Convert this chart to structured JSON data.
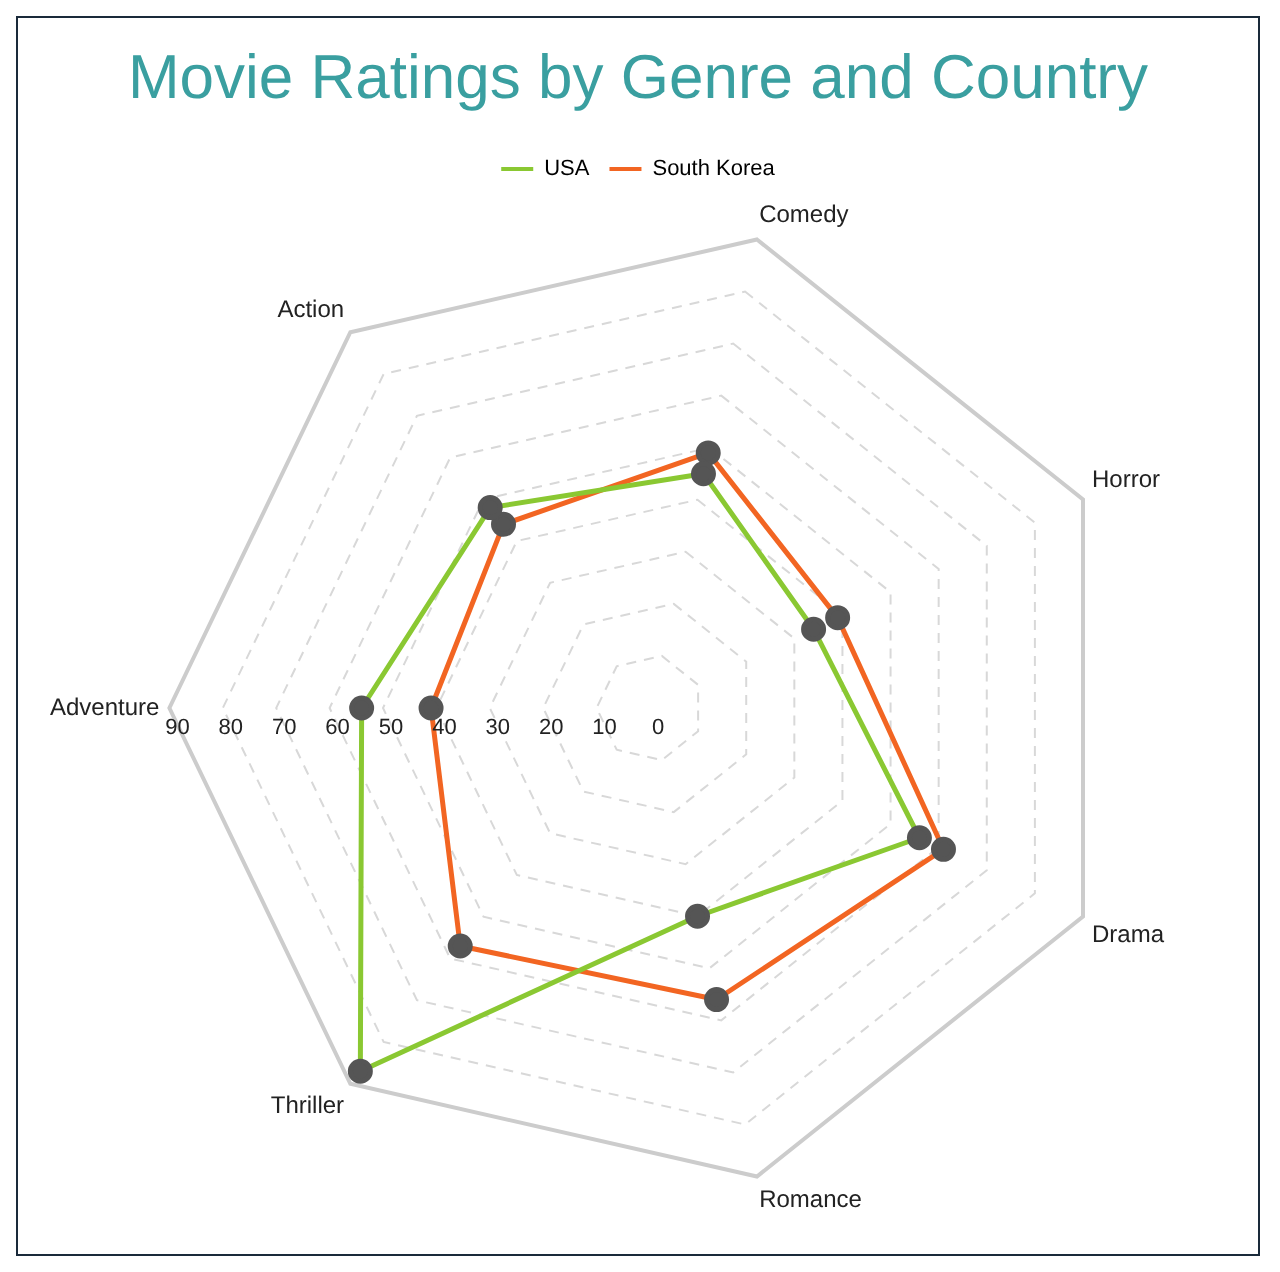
{
  "chart_data": {
    "type": "radar",
    "title": "Movie Ratings by Genre and Country",
    "categories": [
      "Comedy",
      "Horror",
      "Drama",
      "Romance",
      "Thriller",
      "Adventure",
      "Action"
    ],
    "series": [
      {
        "name": "USA",
        "color": "#8ac832",
        "values": [
          45,
          34,
          56,
          40,
          87,
          54,
          48
        ]
      },
      {
        "name": "South Korea",
        "color": "#f26522",
        "values": [
          49,
          39,
          61,
          56,
          57,
          41,
          44
        ]
      }
    ],
    "ylim": [
      0,
      90
    ],
    "yticks": [
      0,
      10,
      20,
      30,
      40,
      50,
      60,
      70,
      80,
      90
    ],
    "grid": true,
    "legend": "top",
    "marker": "circle",
    "line_style": "solid"
  }
}
